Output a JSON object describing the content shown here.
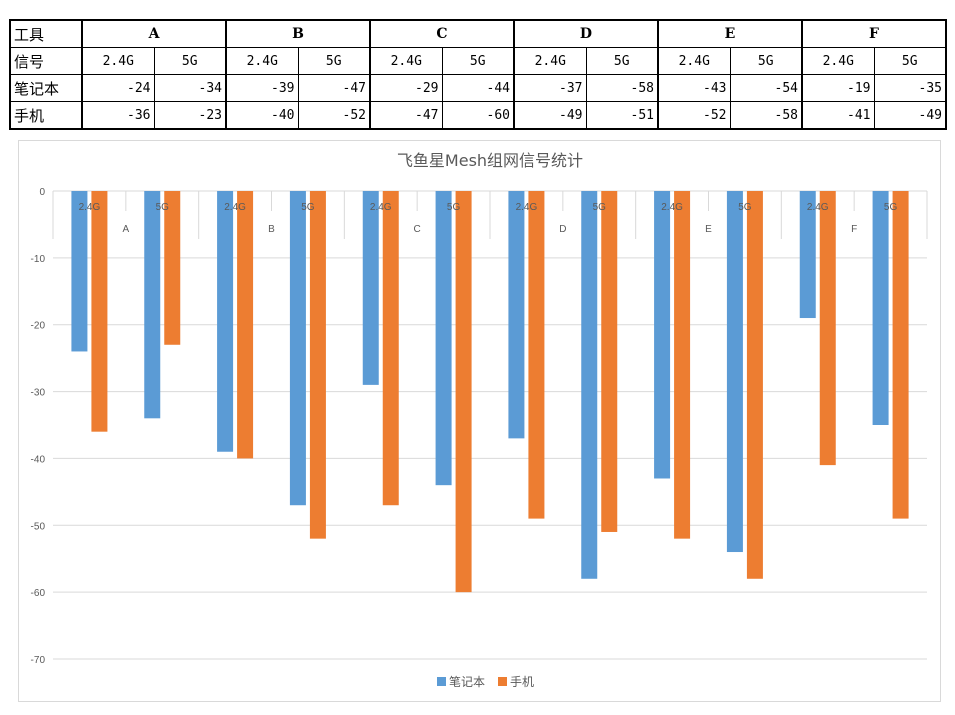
{
  "table": {
    "header_label": "工具",
    "signal_label": "信号",
    "groups": [
      "A",
      "B",
      "C",
      "D",
      "E",
      "F"
    ],
    "bands": [
      "2.4G",
      "5G"
    ],
    "rows": [
      {
        "label": "笔记本",
        "values": [
          "-24",
          "-34",
          "-39",
          "-47",
          "-29",
          "-44",
          "-37",
          "-58",
          "-43",
          "-54",
          "-19",
          "-35"
        ]
      },
      {
        "label": "手机",
        "values": [
          "-36",
          "-23",
          "-40",
          "-52",
          "-47",
          "-60",
          "-49",
          "-51",
          "-52",
          "-58",
          "-41",
          "-49"
        ]
      }
    ]
  },
  "chart_data": {
    "type": "bar",
    "title": "飞鱼星Mesh组网信号统计",
    "groups": [
      "A",
      "B",
      "C",
      "D",
      "E",
      "F"
    ],
    "categories": [
      "2.4G",
      "5G",
      "2.4G",
      "5G",
      "2.4G",
      "5G",
      "2.4G",
      "5G",
      "2.4G",
      "5G",
      "2.4G",
      "5G"
    ],
    "series": [
      {
        "name": "笔记本",
        "color": "#5b9bd5",
        "values": [
          -24,
          -34,
          -39,
          -47,
          -29,
          -44,
          -37,
          -58,
          -43,
          -54,
          -19,
          -35
        ]
      },
      {
        "name": "手机",
        "color": "#ed7d31",
        "values": [
          -36,
          -23,
          -40,
          -52,
          -47,
          -60,
          -49,
          -51,
          -52,
          -58,
          -41,
          -49
        ]
      }
    ],
    "y_ticks": [
      "0",
      "-10",
      "-20",
      "-30",
      "-40",
      "-50",
      "-60",
      "-70"
    ],
    "ylim": [
      -70,
      0
    ],
    "xlabel": "",
    "ylabel": "",
    "grid": true,
    "legend": "bottom"
  }
}
